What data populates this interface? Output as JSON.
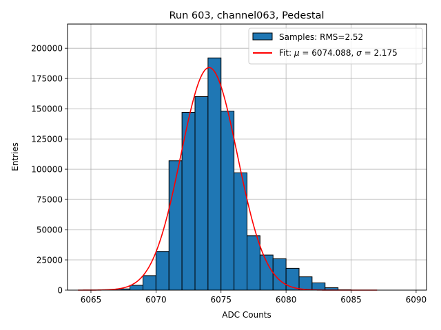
{
  "chart_data": {
    "type": "bar",
    "title": "Run 603, channel063, Pedestal",
    "xlabel": "ADC Counts",
    "ylabel": "Entries",
    "xlim": [
      6063.2,
      6090.8
    ],
    "ylim": [
      0,
      220000
    ],
    "xticks": [
      6065,
      6070,
      6075,
      6080,
      6085,
      6090
    ],
    "yticks": [
      0,
      25000,
      50000,
      75000,
      100000,
      125000,
      150000,
      175000,
      200000
    ],
    "grid": true,
    "legend_position": "top-right",
    "bin_width": 1,
    "histogram": {
      "name": "Samples: RMS=2.52",
      "color": "#1f77b4",
      "edgecolor": "#000000",
      "bin_starts": [
        6066,
        6067,
        6068,
        6069,
        6070,
        6071,
        6072,
        6073,
        6074,
        6075,
        6076,
        6077,
        6078,
        6079,
        6080,
        6081,
        6082,
        6083,
        6084
      ],
      "values": [
        300,
        1000,
        4000,
        12000,
        32000,
        107000,
        147000,
        160000,
        192000,
        148000,
        97000,
        45000,
        29000,
        26000,
        18000,
        11000,
        6000,
        2000,
        300
      ]
    },
    "fit": {
      "name_prefix": "Fit: ",
      "mu_symbol": "μ",
      "mu_text": " = 6074.088, ",
      "sigma_symbol": "σ",
      "sigma_text": " = 2.175",
      "mu": 6074.088,
      "sigma": 2.175,
      "amplitude": 184000,
      "x_range": [
        6064,
        6087
      ],
      "color": "#ff0000"
    }
  }
}
